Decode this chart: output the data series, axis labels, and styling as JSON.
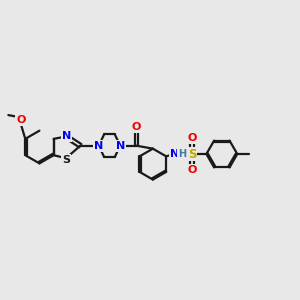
{
  "bg_color": "#e8e8e8",
  "line_color": "#1a1a1a",
  "bond_lw": 1.6,
  "atom_colors": {
    "N": "#0000ee",
    "O": "#ee0000",
    "S_sulfonyl": "#bbaa00",
    "S_benzo": "#1a1a1a",
    "H": "#4477aa",
    "C": "#1a1a1a"
  },
  "font_size": 8.0
}
